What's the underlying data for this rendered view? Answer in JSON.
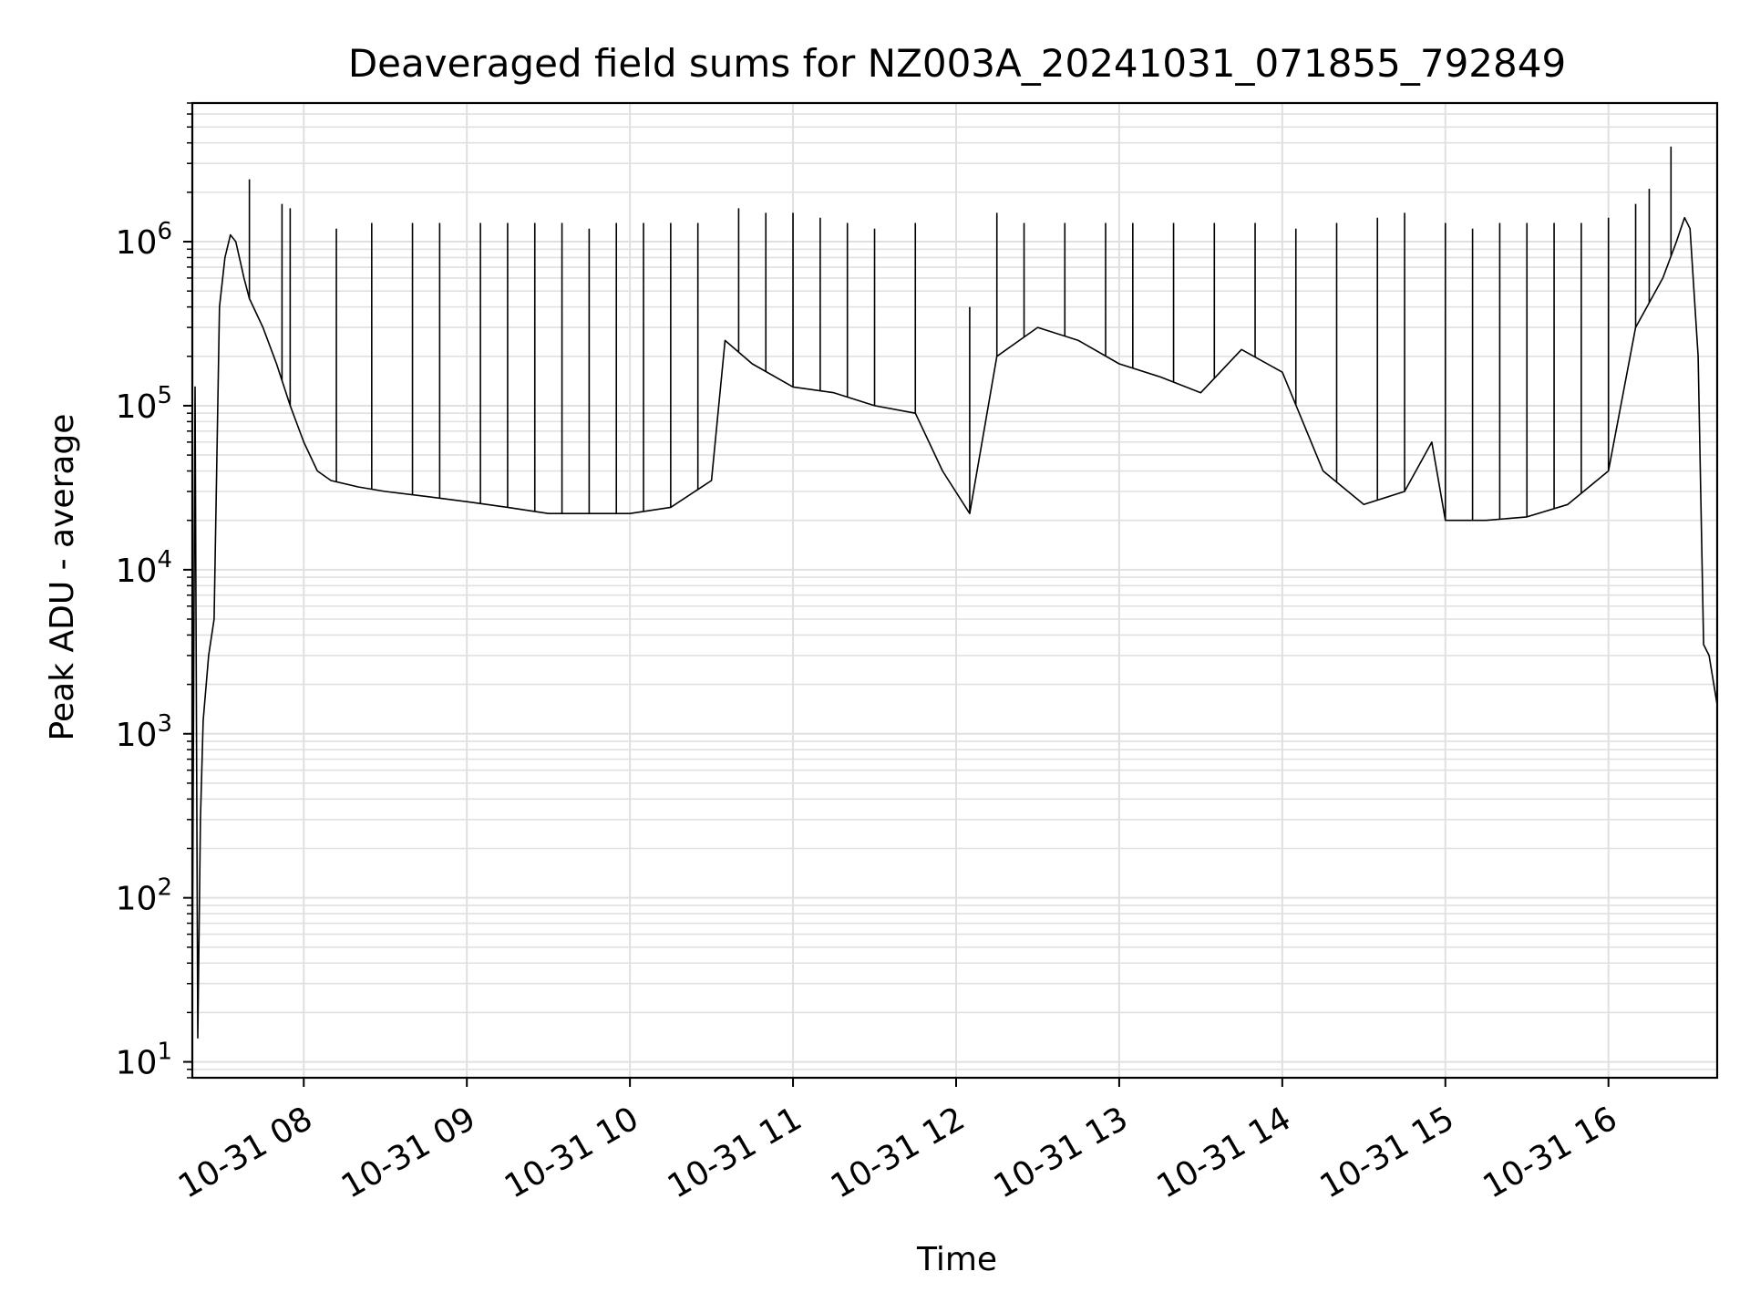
{
  "chart_data": {
    "type": "line",
    "title": "Deaveraged field sums for NZ003A_20241031_071855_792849",
    "xlabel": "Time",
    "ylabel": "Peak ADU - average",
    "yscale": "log",
    "ylim": [
      8,
      7000000
    ],
    "xlim": [
      "2024-10-31 07:19",
      "2024-10-31 16:40"
    ],
    "x_ticks": [
      "10-31 08",
      "10-31 09",
      "10-31 10",
      "10-31 11",
      "10-31 12",
      "10-31 13",
      "10-31 14",
      "10-31 15",
      "10-31 16"
    ],
    "y_ticks": [
      {
        "base": "10",
        "exp": "1"
      },
      {
        "base": "10",
        "exp": "2"
      },
      {
        "base": "10",
        "exp": "3"
      },
      {
        "base": "10",
        "exp": "4"
      },
      {
        "base": "10",
        "exp": "5"
      },
      {
        "base": "10",
        "exp": "6"
      }
    ],
    "grid": true,
    "line_color": "#000000",
    "grid_color": "#e0e0e0",
    "series": [
      {
        "x": [
          "2024-10-31 07:19",
          "2024-10-31 07:20",
          "2024-10-31 07:21",
          "2024-10-31 07:22",
          "2024-10-31 07:23",
          "2024-10-31 07:25",
          "2024-10-31 07:27",
          "2024-10-31 07:29",
          "2024-10-31 07:31",
          "2024-10-31 07:33",
          "2024-10-31 07:35",
          "2024-10-31 07:38",
          "2024-10-31 07:40",
          "2024-10-31 07:45",
          "2024-10-31 07:50",
          "2024-10-31 07:55",
          "2024-10-31 08:00",
          "2024-10-31 08:05",
          "2024-10-31 08:10",
          "2024-10-31 08:20",
          "2024-10-31 08:30",
          "2024-10-31 08:45",
          "2024-10-31 09:00",
          "2024-10-31 09:15",
          "2024-10-31 09:30",
          "2024-10-31 09:45",
          "2024-10-31 10:00",
          "2024-10-31 10:15",
          "2024-10-31 10:30",
          "2024-10-31 10:35",
          "2024-10-31 10:45",
          "2024-10-31 11:00",
          "2024-10-31 11:15",
          "2024-10-31 11:30",
          "2024-10-31 11:45",
          "2024-10-31 11:55",
          "2024-10-31 12:05",
          "2024-10-31 12:15",
          "2024-10-31 12:30",
          "2024-10-31 12:45",
          "2024-10-31 13:00",
          "2024-10-31 13:15",
          "2024-10-31 13:30",
          "2024-10-31 13:45",
          "2024-10-31 14:00",
          "2024-10-31 14:15",
          "2024-10-31 14:30",
          "2024-10-31 14:45",
          "2024-10-31 14:55",
          "2024-10-31 15:00",
          "2024-10-31 15:15",
          "2024-10-31 15:30",
          "2024-10-31 15:45",
          "2024-10-31 16:00",
          "2024-10-31 16:10",
          "2024-10-31 16:20",
          "2024-10-31 16:25",
          "2024-10-31 16:28",
          "2024-10-31 16:30",
          "2024-10-31 16:33",
          "2024-10-31 16:35",
          "2024-10-31 16:37",
          "2024-10-31 16:40"
        ],
        "values": [
          30,
          130000,
          14,
          300,
          1200,
          3000,
          5000,
          400000,
          800000,
          1100000,
          1000000,
          600000,
          450000,
          300000,
          180000,
          100000,
          60000,
          40000,
          35000,
          32000,
          30000,
          28000,
          26000,
          24000,
          22000,
          22000,
          22000,
          24000,
          35000,
          250000,
          180000,
          130000,
          120000,
          100000,
          90000,
          40000,
          22000,
          200000,
          300000,
          250000,
          180000,
          150000,
          120000,
          220000,
          160000,
          40000,
          25000,
          30000,
          60000,
          20000,
          20000,
          21000,
          25000,
          40000,
          300000,
          600000,
          1000000,
          1400000,
          1200000,
          200000,
          3500,
          3000,
          1500
        ],
        "spikes": {
          "x": [
            "2024-10-31 07:40",
            "2024-10-31 07:52",
            "2024-10-31 07:55",
            "2024-10-31 08:12",
            "2024-10-31 08:25",
            "2024-10-31 08:40",
            "2024-10-31 08:50",
            "2024-10-31 09:05",
            "2024-10-31 09:15",
            "2024-10-31 09:25",
            "2024-10-31 09:35",
            "2024-10-31 09:45",
            "2024-10-31 09:55",
            "2024-10-31 10:05",
            "2024-10-31 10:15",
            "2024-10-31 10:25",
            "2024-10-31 10:40",
            "2024-10-31 10:50",
            "2024-10-31 11:00",
            "2024-10-31 11:10",
            "2024-10-31 11:20",
            "2024-10-31 11:30",
            "2024-10-31 11:45",
            "2024-10-31 12:05",
            "2024-10-31 12:15",
            "2024-10-31 12:25",
            "2024-10-31 12:40",
            "2024-10-31 12:55",
            "2024-10-31 13:05",
            "2024-10-31 13:20",
            "2024-10-31 13:35",
            "2024-10-31 13:50",
            "2024-10-31 14:05",
            "2024-10-31 14:20",
            "2024-10-31 14:35",
            "2024-10-31 14:45",
            "2024-10-31 15:00",
            "2024-10-31 15:10",
            "2024-10-31 15:20",
            "2024-10-31 15:30",
            "2024-10-31 15:40",
            "2024-10-31 15:50",
            "2024-10-31 16:00",
            "2024-10-31 16:10",
            "2024-10-31 16:15",
            "2024-10-31 16:23"
          ],
          "values": [
            2400000,
            1700000,
            1600000,
            1200000,
            1300000,
            1300000,
            1300000,
            1300000,
            1300000,
            1300000,
            1300000,
            1200000,
            1300000,
            1300000,
            1300000,
            1300000,
            1600000,
            1500000,
            1500000,
            1400000,
            1300000,
            1200000,
            1300000,
            400000,
            1500000,
            1300000,
            1300000,
            1300000,
            1300000,
            1300000,
            1300000,
            1300000,
            1200000,
            1300000,
            1400000,
            1500000,
            1300000,
            1200000,
            1300000,
            1300000,
            1300000,
            1300000,
            1400000,
            1700000,
            2100000,
            3800000
          ]
        }
      }
    ]
  }
}
